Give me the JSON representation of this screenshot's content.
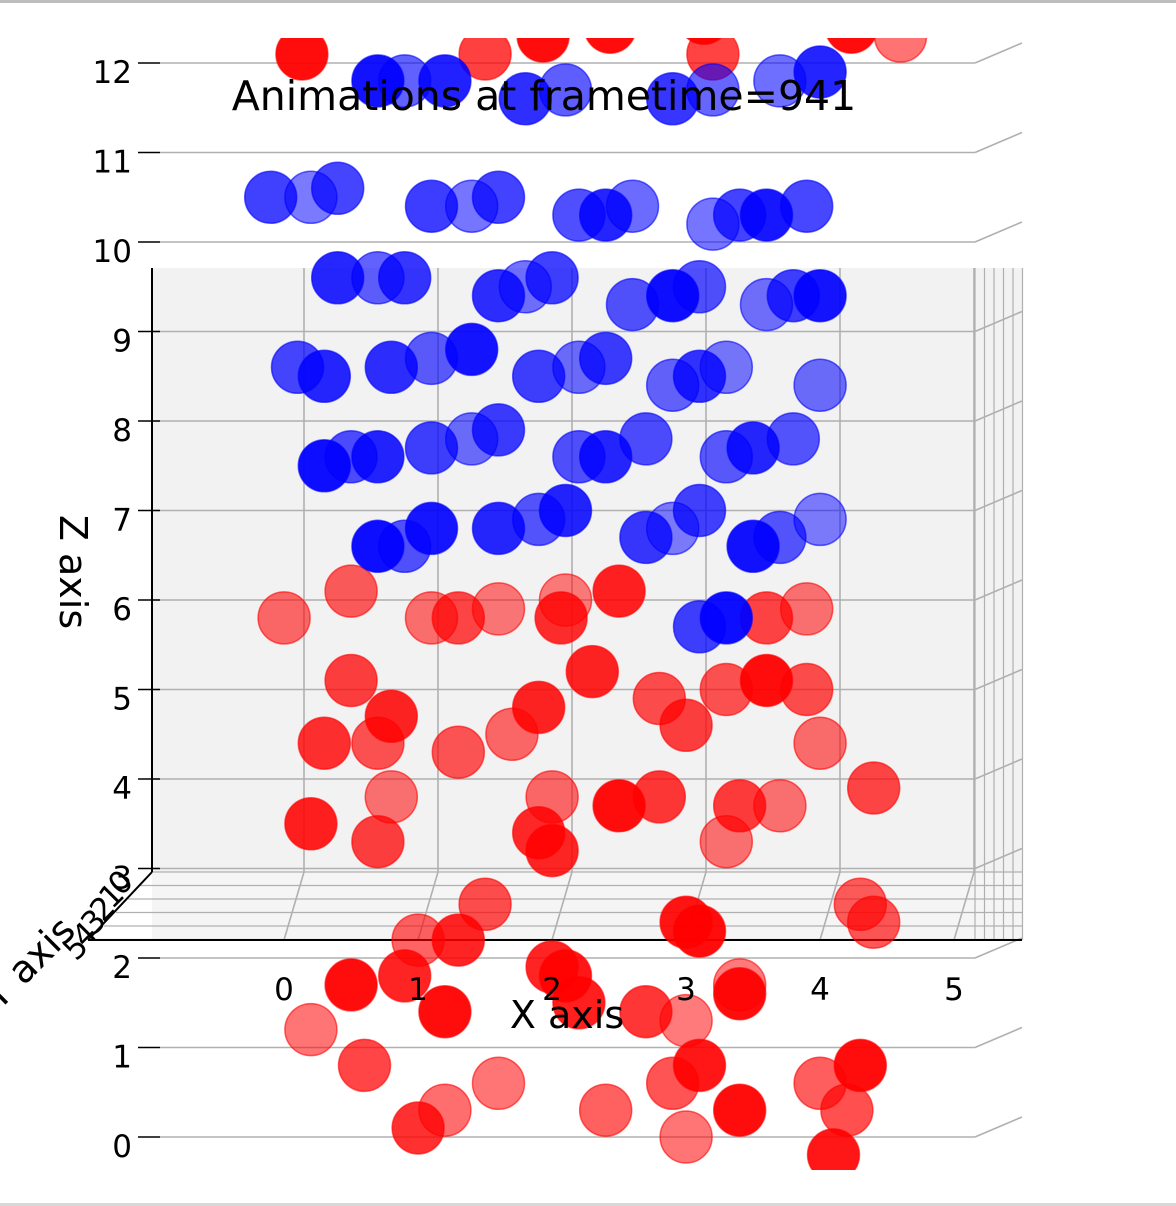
{
  "chart_data": {
    "type": "scatter",
    "projection": "3d",
    "title": "Animations at frametime=941",
    "xlabel": "X axis",
    "ylabel": "Y axis",
    "zlabel": "Z axis",
    "xticks": [
      "0",
      "1",
      "2",
      "3",
      "4",
      "5"
    ],
    "yticks": [
      "0",
      "1",
      "2",
      "3",
      "4",
      "5"
    ],
    "zticks": [
      "0",
      "1",
      "2",
      "3",
      "4",
      "5",
      "6",
      "7",
      "8",
      "9",
      "10",
      "11",
      "12"
    ],
    "xlim": [
      -0.2,
      5.5
    ],
    "zlim": [
      0,
      12
    ],
    "grid": true,
    "colors": {
      "series_red": "#ff0000",
      "series_blue": "#0000ff",
      "pane": "#f2f2f2",
      "grid": "#b0b0b0"
    },
    "series": [
      {
        "color": "#ff0000",
        "points": [
          [
            1.9,
            0.5,
            12.3
          ],
          [
            2.4,
            0.5,
            12.4
          ],
          [
            3.1,
            0.5,
            12.5
          ],
          [
            3.1,
            1.5,
            12.1
          ],
          [
            4.2,
            0.5,
            12.4
          ],
          [
            0.1,
            0.5,
            12.1
          ],
          [
            1.4,
            1.5,
            12.1
          ],
          [
            4.5,
            1.5,
            12.3
          ],
          [
            -0.1,
            1.5,
            5.8
          ],
          [
            0.4,
            1.5,
            6.1
          ],
          [
            1.0,
            1.5,
            5.8
          ],
          [
            1.2,
            1.5,
            5.8
          ],
          [
            1.5,
            1.5,
            5.9
          ],
          [
            1.9,
            2.5,
            5.8
          ],
          [
            2.0,
            1.5,
            6.0
          ],
          [
            2.4,
            1.5,
            6.1
          ],
          [
            3.5,
            1.5,
            5.8
          ],
          [
            3.8,
            1.5,
            5.9
          ],
          [
            0.4,
            1.5,
            5.1
          ],
          [
            0.7,
            1.5,
            4.7
          ],
          [
            0.6,
            1.5,
            4.4
          ],
          [
            0.2,
            1.5,
            4.4
          ],
          [
            1.2,
            1.5,
            4.3
          ],
          [
            1.6,
            1.5,
            4.5
          ],
          [
            1.8,
            1.5,
            4.8
          ],
          [
            2.2,
            1.5,
            5.2
          ],
          [
            2.7,
            1.5,
            4.9
          ],
          [
            2.9,
            1.5,
            4.6
          ],
          [
            3.2,
            1.5,
            5.0
          ],
          [
            3.5,
            1.5,
            5.1
          ],
          [
            3.8,
            1.5,
            5.0
          ],
          [
            3.9,
            1.5,
            4.4
          ],
          [
            0.7,
            1.5,
            3.8
          ],
          [
            0.1,
            1.5,
            3.5
          ],
          [
            0.6,
            1.5,
            3.3
          ],
          [
            1.9,
            1.5,
            3.8
          ],
          [
            1.8,
            1.5,
            3.4
          ],
          [
            1.9,
            1.5,
            3.2
          ],
          [
            2.4,
            1.5,
            3.7
          ],
          [
            2.7,
            1.5,
            3.8
          ],
          [
            3.2,
            1.5,
            3.3
          ],
          [
            3.3,
            1.5,
            3.7
          ],
          [
            3.6,
            1.5,
            3.7
          ],
          [
            4.3,
            1.5,
            3.9
          ],
          [
            1.4,
            1.5,
            2.6
          ],
          [
            2.9,
            1.5,
            2.4
          ],
          [
            3.0,
            1.5,
            2.3
          ],
          [
            4.2,
            1.5,
            2.6
          ],
          [
            4.3,
            1.5,
            2.4
          ],
          [
            0.9,
            1.5,
            2.2
          ],
          [
            1.2,
            1.5,
            2.2
          ],
          [
            0.8,
            1.5,
            1.8
          ],
          [
            1.9,
            1.5,
            1.9
          ],
          [
            2.0,
            1.5,
            1.8
          ],
          [
            0.4,
            1.5,
            1.7
          ],
          [
            0.1,
            1.5,
            1.2
          ],
          [
            1.1,
            1.5,
            1.4
          ],
          [
            2.1,
            1.5,
            1.5
          ],
          [
            2.6,
            1.5,
            1.4
          ],
          [
            2.9,
            1.5,
            1.3
          ],
          [
            3.3,
            1.5,
            1.6
          ],
          [
            3.3,
            1.5,
            1.7
          ],
          [
            0.5,
            1.5,
            0.8
          ],
          [
            1.5,
            1.5,
            0.6
          ],
          [
            2.8,
            1.5,
            0.6
          ],
          [
            3.0,
            1.5,
            0.8
          ],
          [
            3.9,
            1.5,
            0.6
          ],
          [
            4.2,
            1.5,
            0.8
          ],
          [
            1.1,
            1.5,
            0.3
          ],
          [
            0.9,
            1.5,
            0.1
          ],
          [
            2.3,
            1.5,
            0.3
          ],
          [
            3.3,
            1.5,
            0.3
          ],
          [
            4.1,
            1.5,
            0.3
          ],
          [
            2.9,
            1.5,
            0.0
          ],
          [
            4.0,
            1.5,
            -0.2
          ]
        ]
      },
      {
        "color": "#0000ff",
        "points": [
          [
            0.6,
            1.5,
            11.8
          ],
          [
            0.8,
            1.5,
            11.8
          ],
          [
            1.1,
            1.5,
            11.8
          ],
          [
            1.7,
            1.5,
            11.6
          ],
          [
            2.0,
            1.5,
            11.7
          ],
          [
            2.8,
            1.5,
            11.6
          ],
          [
            3.1,
            1.5,
            11.7
          ],
          [
            3.6,
            1.5,
            11.8
          ],
          [
            3.9,
            1.5,
            11.9
          ],
          [
            -0.2,
            1.5,
            10.5
          ],
          [
            0.1,
            1.5,
            10.5
          ],
          [
            0.3,
            1.5,
            10.6
          ],
          [
            1.0,
            1.5,
            10.4
          ],
          [
            1.3,
            1.5,
            10.4
          ],
          [
            1.5,
            1.5,
            10.5
          ],
          [
            2.1,
            1.5,
            10.3
          ],
          [
            2.3,
            1.5,
            10.3
          ],
          [
            2.5,
            1.5,
            10.4
          ],
          [
            3.1,
            1.5,
            10.2
          ],
          [
            3.3,
            1.5,
            10.3
          ],
          [
            3.5,
            1.5,
            10.3
          ],
          [
            3.8,
            1.5,
            10.4
          ],
          [
            0.3,
            1.5,
            9.6
          ],
          [
            0.6,
            1.5,
            9.6
          ],
          [
            0.8,
            1.5,
            9.6
          ],
          [
            1.5,
            1.5,
            9.4
          ],
          [
            1.7,
            1.5,
            9.5
          ],
          [
            1.9,
            1.5,
            9.6
          ],
          [
            2.5,
            1.5,
            9.3
          ],
          [
            2.8,
            1.5,
            9.4
          ],
          [
            3.0,
            1.5,
            9.5
          ],
          [
            3.5,
            1.5,
            9.3
          ],
          [
            3.7,
            1.5,
            9.4
          ],
          [
            3.9,
            1.5,
            9.4
          ],
          [
            0.0,
            1.5,
            8.6
          ],
          [
            0.2,
            1.5,
            8.5
          ],
          [
            0.7,
            1.5,
            8.6
          ],
          [
            1.0,
            1.5,
            8.7
          ],
          [
            1.3,
            1.5,
            8.8
          ],
          [
            1.8,
            1.5,
            8.5
          ],
          [
            2.1,
            1.5,
            8.6
          ],
          [
            2.3,
            1.5,
            8.7
          ],
          [
            2.8,
            1.5,
            8.4
          ],
          [
            3.0,
            1.5,
            8.5
          ],
          [
            3.2,
            1.5,
            8.6
          ],
          [
            3.9,
            1.5,
            8.4
          ],
          [
            0.2,
            1.5,
            7.5
          ],
          [
            0.4,
            1.5,
            7.6
          ],
          [
            0.6,
            1.5,
            7.6
          ],
          [
            1.0,
            1.5,
            7.7
          ],
          [
            1.3,
            1.5,
            7.8
          ],
          [
            1.5,
            1.5,
            7.9
          ],
          [
            2.1,
            1.5,
            7.6
          ],
          [
            2.3,
            1.5,
            7.6
          ],
          [
            2.6,
            1.5,
            7.8
          ],
          [
            3.2,
            1.5,
            7.6
          ],
          [
            3.4,
            1.5,
            7.7
          ],
          [
            3.7,
            1.5,
            7.8
          ],
          [
            0.6,
            1.5,
            6.6
          ],
          [
            0.8,
            1.5,
            6.6
          ],
          [
            1.0,
            1.5,
            6.8
          ],
          [
            1.5,
            1.5,
            6.8
          ],
          [
            1.8,
            1.5,
            6.9
          ],
          [
            2.0,
            1.5,
            7.0
          ],
          [
            2.6,
            1.5,
            6.7
          ],
          [
            2.8,
            1.5,
            6.8
          ],
          [
            3.0,
            1.5,
            7.0
          ],
          [
            3.4,
            1.5,
            6.6
          ],
          [
            3.6,
            1.5,
            6.7
          ],
          [
            3.9,
            1.5,
            6.9
          ],
          [
            3.2,
            1.5,
            5.8
          ],
          [
            3.0,
            1.5,
            5.7
          ]
        ]
      }
    ]
  }
}
